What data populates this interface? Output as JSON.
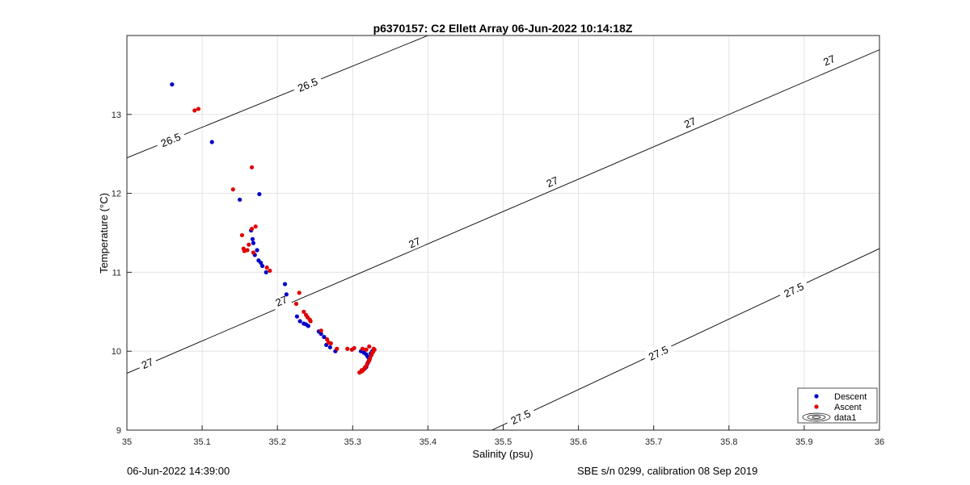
{
  "chart_data": {
    "type": "scatter",
    "title": "p6370157: C2 Ellett Array 06-Jun-2022 10:14:18Z",
    "xlabel": "Salinity (psu)",
    "ylabel": "Temperature (°C)",
    "xlim": [
      35,
      36
    ],
    "ylim": [
      9,
      14
    ],
    "xticks": [
      "35",
      "35.1",
      "35.2",
      "35.3",
      "35.4",
      "35.5",
      "35.6",
      "35.7",
      "35.8",
      "35.9",
      "36"
    ],
    "yticks": [
      "9",
      "10",
      "11",
      "12",
      "13"
    ],
    "grid": true,
    "legend_position": "bottom-right",
    "series": [
      {
        "name": "Descent",
        "color": "#0000c8",
        "points": [
          [
            35.06,
            13.38
          ],
          [
            35.113,
            12.65
          ],
          [
            35.176,
            11.99
          ],
          [
            35.15,
            11.92
          ],
          [
            35.165,
            11.53
          ],
          [
            35.167,
            11.42
          ],
          [
            35.168,
            11.37
          ],
          [
            35.17,
            11.22
          ],
          [
            35.173,
            11.28
          ],
          [
            35.175,
            11.15
          ],
          [
            35.178,
            11.12
          ],
          [
            35.18,
            11.08
          ],
          [
            35.185,
            11.0
          ],
          [
            35.21,
            10.85
          ],
          [
            35.212,
            10.72
          ],
          [
            35.226,
            10.44
          ],
          [
            35.23,
            10.38
          ],
          [
            35.235,
            10.35
          ],
          [
            35.238,
            10.34
          ],
          [
            35.241,
            10.32
          ],
          [
            35.255,
            10.25
          ],
          [
            35.258,
            10.22
          ],
          [
            35.262,
            10.18
          ],
          [
            35.265,
            10.08
          ],
          [
            35.27,
            10.05
          ],
          [
            35.277,
            10.0
          ],
          [
            35.311,
            10.0
          ],
          [
            35.315,
            9.98
          ],
          [
            35.318,
            9.96
          ],
          [
            35.32,
            9.93
          ],
          [
            35.322,
            9.9
          ],
          [
            35.324,
            9.97
          ],
          [
            35.326,
            10.0
          ],
          [
            35.32,
            9.85
          ],
          [
            35.318,
            9.8
          ],
          [
            35.316,
            9.78
          ]
        ]
      },
      {
        "name": "Ascent",
        "color": "#e00000",
        "points": [
          [
            35.09,
            13.05
          ],
          [
            35.095,
            13.07
          ],
          [
            35.166,
            12.33
          ],
          [
            35.141,
            12.05
          ],
          [
            35.171,
            11.58
          ],
          [
            35.166,
            11.55
          ],
          [
            35.153,
            11.47
          ],
          [
            35.162,
            11.35
          ],
          [
            35.155,
            11.3
          ],
          [
            35.156,
            11.27
          ],
          [
            35.16,
            11.28
          ],
          [
            35.168,
            11.25
          ],
          [
            35.186,
            11.06
          ],
          [
            35.19,
            11.02
          ],
          [
            35.229,
            10.74
          ],
          [
            35.225,
            10.6
          ],
          [
            35.235,
            10.5
          ],
          [
            35.238,
            10.46
          ],
          [
            35.24,
            10.43
          ],
          [
            35.243,
            10.4
          ],
          [
            35.244,
            10.38
          ],
          [
            35.258,
            10.26
          ],
          [
            35.266,
            10.15
          ],
          [
            35.268,
            10.11
          ],
          [
            35.271,
            10.1
          ],
          [
            35.279,
            10.03
          ],
          [
            35.293,
            10.03
          ],
          [
            35.299,
            10.02
          ],
          [
            35.302,
            10.04
          ],
          [
            35.313,
            10.03
          ],
          [
            35.318,
            10.02
          ],
          [
            35.322,
            10.06
          ],
          [
            35.328,
            10.03
          ],
          [
            35.327,
            9.99
          ],
          [
            35.325,
            9.95
          ],
          [
            35.323,
            9.91
          ],
          [
            35.321,
            9.87
          ],
          [
            35.319,
            9.83
          ],
          [
            35.317,
            9.8
          ],
          [
            35.315,
            9.77
          ],
          [
            35.313,
            9.75
          ],
          [
            35.311,
            9.74
          ],
          [
            35.309,
            9.73
          ],
          [
            35.312,
            9.76
          ],
          [
            35.316,
            9.79
          ],
          [
            35.322,
            9.88
          ],
          [
            35.326,
            9.98
          ],
          [
            35.329,
            10.02
          ]
        ]
      }
    ],
    "contours": [
      {
        "label": "26.5",
        "from": [
          35.0,
          12.45
        ],
        "to": [
          35.4,
          14.0
        ],
        "labels_at": [
          [
            35.058,
            12.68
          ],
          [
            35.24,
            13.38
          ]
        ]
      },
      {
        "label": "27",
        "from": [
          35.0,
          9.72
        ],
        "to": [
          36.0,
          13.82
        ],
        "labels_at": [
          [
            35.027,
            9.85
          ],
          [
            35.205,
            10.64
          ],
          [
            35.382,
            11.38
          ],
          [
            35.565,
            12.15
          ],
          [
            35.748,
            12.9
          ],
          [
            35.933,
            13.69
          ]
        ]
      },
      {
        "label": "27.5",
        "from": [
          35.485,
          9.0
        ],
        "to": [
          36.0,
          11.3
        ],
        "labels_at": [
          [
            35.523,
            9.17
          ],
          [
            35.706,
            9.98
          ],
          [
            35.886,
            10.78
          ]
        ]
      }
    ],
    "legend_entries": [
      "Descent",
      "Ascent",
      "data1"
    ]
  },
  "footer": {
    "left_text": "06-Jun-2022 14:39:00",
    "right_text": "SBE s/n 0299, calibration 08 Sep 2019"
  }
}
